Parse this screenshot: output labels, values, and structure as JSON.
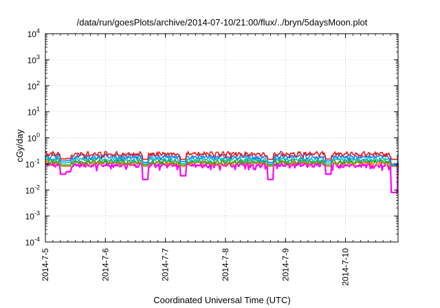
{
  "chart_data": {
    "type": "line",
    "title": "/data/run/goesPlots/archive/2014-07-10/21:00/flux/../bryn/5daysMoon.plot",
    "xlabel": "Coordinated Universal Time (UTC)",
    "ylabel": "cGy/day",
    "yscale": "log",
    "ylim": [
      0.0001,
      10000
    ],
    "xlim": [
      "2014-07-05 00:00",
      "2014-07-10 21:00"
    ],
    "grid": true,
    "legend": "none",
    "xticks": [
      "2014-7-5",
      "2014-7-6",
      "2014-7-7",
      "2014-7-8",
      "2014-7-9",
      "2014-7-10"
    ],
    "yticks": [
      {
        "base": "10",
        "exp": "-4"
      },
      {
        "base": "10",
        "exp": "-3"
      },
      {
        "base": "10",
        "exp": "-2"
      },
      {
        "base": "10",
        "exp": "-1"
      },
      {
        "base": "10",
        "exp": "0"
      },
      {
        "base": "10",
        "exp": "1"
      },
      {
        "base": "10",
        "exp": "2"
      },
      {
        "base": "10",
        "exp": "3"
      },
      {
        "base": "10",
        "exp": "4"
      }
    ],
    "series": [
      {
        "color": "#e41a1c",
        "typical": 0.24,
        "range": [
          0.15,
          0.3
        ]
      },
      {
        "color": "#1f77ff",
        "typical": 0.19,
        "range": [
          0.08,
          0.28
        ]
      },
      {
        "color": "#00c0c0",
        "typical": 0.15,
        "range": [
          0.1,
          0.2
        ]
      },
      {
        "color": "#2ca02c",
        "typical": 0.12,
        "range": [
          0.09,
          0.15
        ]
      },
      {
        "color": "#ff7f00",
        "typical": 0.11,
        "range": [
          0.08,
          0.14
        ]
      },
      {
        "color": "#ff00ff",
        "typical": 0.09,
        "range": [
          0.008,
          0.12
        ]
      }
    ],
    "dips": [
      {
        "time": "2014-07-05 07:00",
        "value": 0.04
      },
      {
        "time": "2014-07-05 09:00",
        "value": 0.05
      },
      {
        "time": "2014-07-06 16:00",
        "value": 0.025
      },
      {
        "time": "2014-07-07 07:00",
        "value": 0.035
      },
      {
        "time": "2014-07-08 18:00",
        "value": 0.025
      },
      {
        "time": "2014-07-09 17:00",
        "value": 0.04
      },
      {
        "time": "2014-07-10 19:30",
        "value": 0.008
      }
    ]
  }
}
